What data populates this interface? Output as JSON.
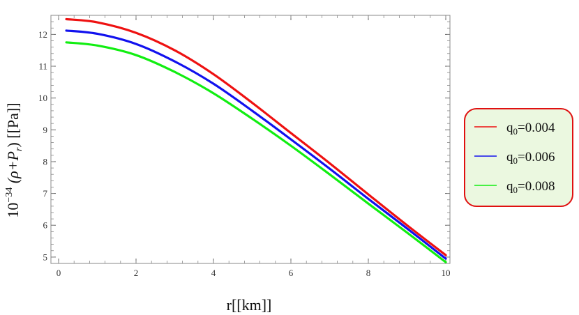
{
  "chart_data": {
    "type": "line",
    "title": "",
    "xlabel": "r[[km]]",
    "ylabel_prefix": "10",
    "ylabel_exp": "−34",
    "ylabel_main": " (ρ+P",
    "ylabel_sub": "r",
    "ylabel_suffix": ") [[Pa]]",
    "xlim": [
      0,
      10
    ],
    "ylim": [
      4.8,
      12.6
    ],
    "xticks": [
      0,
      2,
      4,
      6,
      8,
      10
    ],
    "yticks": [
      5,
      6,
      7,
      8,
      9,
      10,
      11,
      12
    ],
    "grid": false,
    "legend_position": "right",
    "series": [
      {
        "name": "q",
        "name_sub": "0",
        "name_suffix": "=0.004",
        "color": "#ee1111",
        "x": [
          0.2,
          1,
          2,
          3,
          4,
          5,
          6,
          7,
          8,
          9,
          10
        ],
        "y": [
          12.48,
          12.38,
          12.05,
          11.5,
          10.75,
          9.85,
          8.9,
          7.95,
          6.97,
          6.0,
          5.06
        ]
      },
      {
        "name": "q",
        "name_sub": "0",
        "name_suffix": "=0.006",
        "color": "#1111ee",
        "x": [
          0.2,
          1,
          2,
          3,
          4,
          5,
          6,
          7,
          8,
          9,
          10
        ],
        "y": [
          12.12,
          12.02,
          11.7,
          11.15,
          10.45,
          9.6,
          8.7,
          7.78,
          6.83,
          5.9,
          4.95
        ]
      },
      {
        "name": "q",
        "name_sub": "0",
        "name_suffix": "=0.008",
        "color": "#11ee11",
        "x": [
          0.2,
          1,
          2,
          3,
          4,
          5,
          6,
          7,
          8,
          9,
          10
        ],
        "y": [
          11.75,
          11.65,
          11.35,
          10.82,
          10.15,
          9.35,
          8.5,
          7.6,
          6.68,
          5.77,
          4.84
        ]
      }
    ],
    "legend_style": {
      "border_color": "#e01010",
      "background": "#ebf8e0"
    }
  }
}
